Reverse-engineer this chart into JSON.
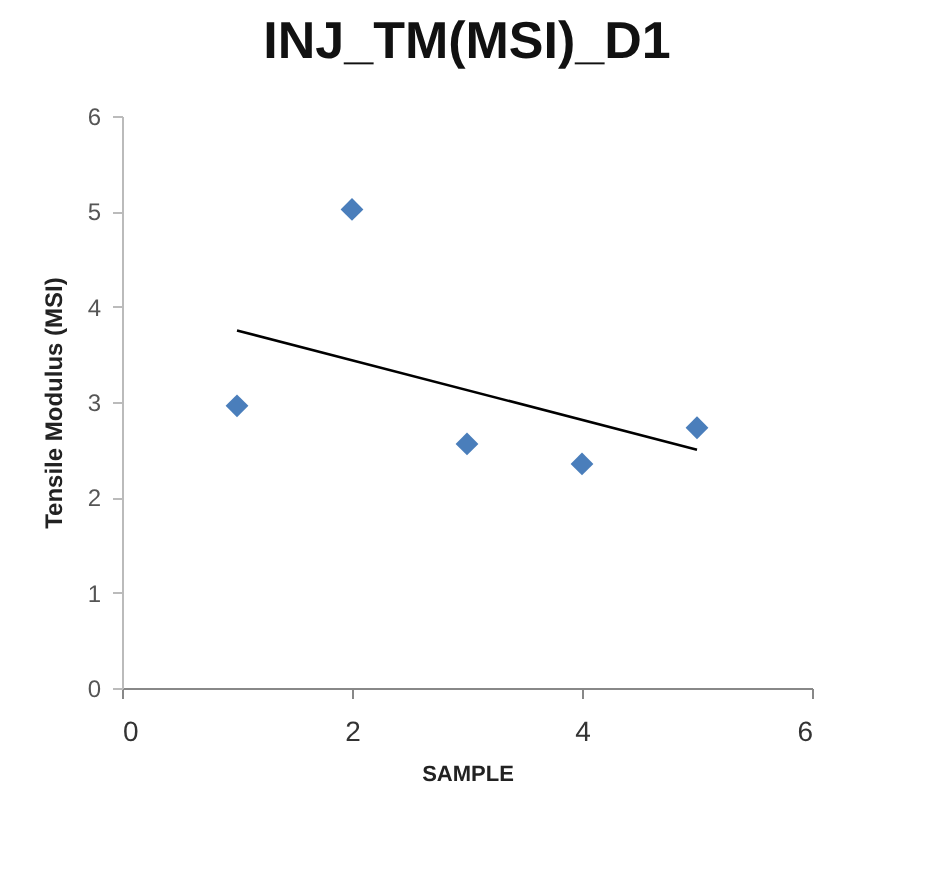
{
  "chart_data": {
    "type": "scatter",
    "title": "INJ_TM(MSI)_D1",
    "xlabel": "SAMPLE",
    "ylabel": "Tensile Modulus (MSI)",
    "xlim": [
      0,
      6
    ],
    "xticks": [
      0,
      2,
      4,
      6
    ],
    "ylim": [
      0,
      6
    ],
    "yticks": [
      0,
      1,
      2,
      3,
      4,
      5,
      6
    ],
    "grid": false,
    "x": [
      1,
      2,
      3,
      4,
      5
    ],
    "series": [
      {
        "color": "#4a7ebb",
        "marker": "diamond",
        "values": [
          2.96,
          5.02,
          2.56,
          2.35,
          2.73
        ]
      },
      {
        "type": "line",
        "color": "#000000",
        "x": [
          1,
          5
        ],
        "values": [
          3.75,
          2.5
        ]
      }
    ]
  }
}
